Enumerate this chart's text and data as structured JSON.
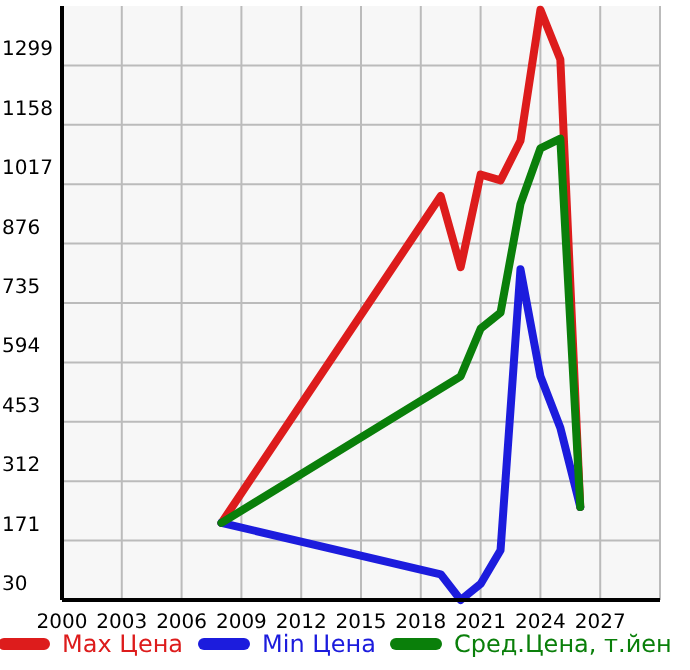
{
  "chart_data": {
    "type": "line",
    "x": [
      2008,
      2019,
      2020,
      2021,
      2022,
      2023,
      2024,
      2025,
      2026
    ],
    "series": [
      {
        "name": "Max Цена",
        "color": "#dd1c1c",
        "values": [
          213,
          989,
          820,
          1040,
          1026,
          1120,
          1431,
          1313,
          251
        ]
      },
      {
        "name": "Min Цена",
        "color": "#1c1cdd",
        "values": [
          213,
          91,
          30,
          68,
          148,
          815,
          561,
          439,
          251
        ]
      },
      {
        "name": "Сред.Цена, т.йен",
        "color": "#0a7f0a",
        "x": [
          2008,
          2020,
          2021,
          2022,
          2023,
          2024,
          2025,
          2026
        ],
        "values": [
          213,
          561,
          674,
          712,
          970,
          1102,
          1125,
          251
        ]
      }
    ],
    "xlim": [
      2000,
      2030
    ],
    "xticks": [
      2000,
      2003,
      2006,
      2009,
      2012,
      2015,
      2018,
      2021,
      2024,
      2027
    ],
    "ylim": [
      30,
      1440
    ],
    "yticks": [
      30,
      171,
      312,
      453,
      594,
      735,
      876,
      1017,
      1158,
      1299
    ],
    "grid": true,
    "legend": "bottom",
    "marker": "none",
    "line_style": "solid"
  }
}
